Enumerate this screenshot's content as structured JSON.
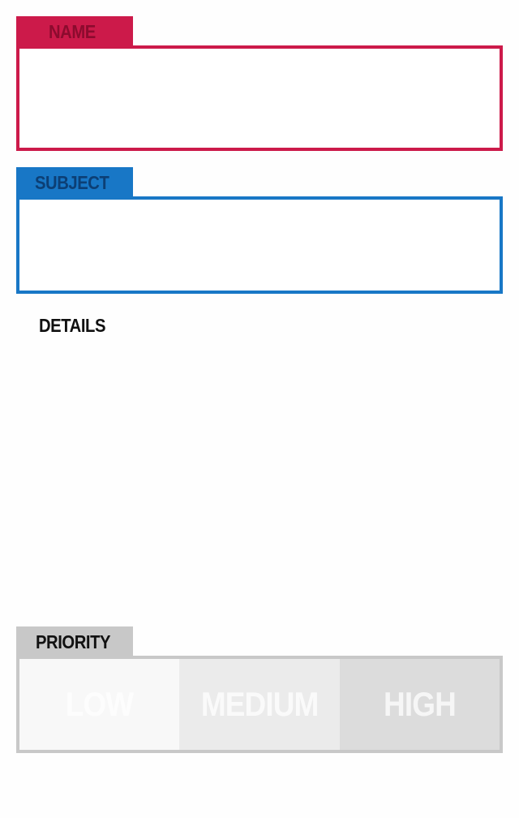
{
  "form": {
    "name": {
      "label": "NAME",
      "value": "",
      "color": "#cc1a4a",
      "label_color": "#8c0b2e"
    },
    "subject": {
      "label": "SUBJECT",
      "value": "",
      "color": "#1877c6",
      "label_color": "#0c3f75"
    },
    "details": {
      "label": "DETAILS",
      "value": ""
    },
    "priority": {
      "label": "PRIORITY",
      "color": "#c8c8c8",
      "options": [
        {
          "label": "LOW",
          "background": "#f8f8f8"
        },
        {
          "label": "MEDIUM",
          "background": "#ebebeb"
        },
        {
          "label": "HIGH",
          "background": "#dcdcdc"
        }
      ]
    }
  }
}
